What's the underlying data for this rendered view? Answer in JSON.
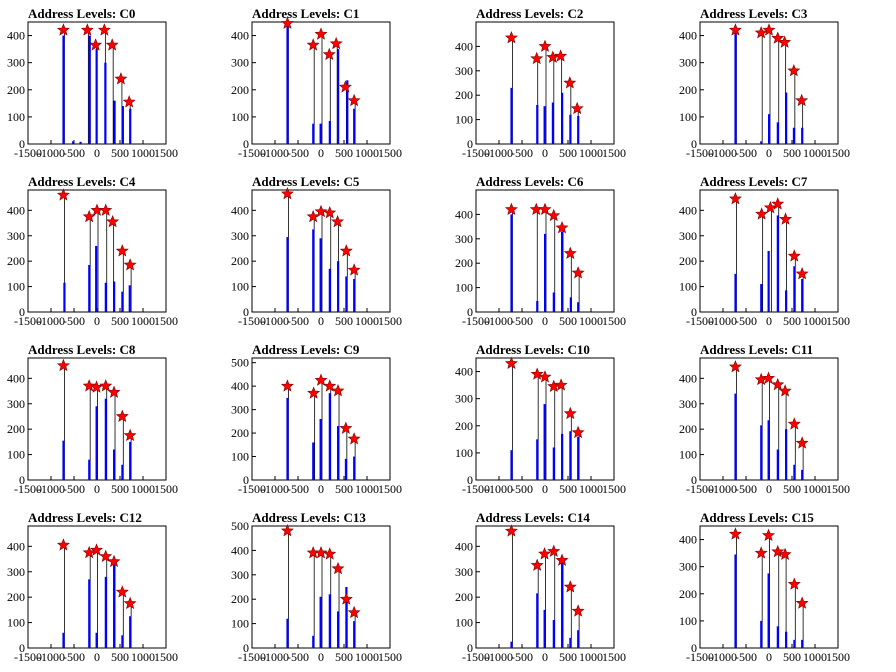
{
  "layout": {
    "rows": 4,
    "cols": 4
  },
  "x_ticks": [
    -1500,
    -1000,
    -500,
    0,
    500,
    1000,
    1500
  ],
  "x_tick_labels": [
    "-1500",
    "-1000",
    "-500",
    "0",
    "500",
    "1000",
    "1500"
  ],
  "xlim": [
    -1500,
    1500
  ],
  "colors": {
    "bars": "#0000ff",
    "markers": "#ff0000",
    "marker_edge": "#800000",
    "peak_lines": "#000000"
  },
  "chart_data": [
    {
      "type": "bar",
      "title": "Address Levels: C0",
      "xlim": [
        -1500,
        1500
      ],
      "ylim": [
        0,
        450
      ],
      "y_ticks": [
        0,
        100,
        200,
        300,
        400
      ],
      "bars": {
        "x": [
          -730,
          -520,
          -360,
          -160,
          -10,
          180,
          380,
          560,
          720
        ],
        "values": [
          400,
          10,
          8,
          400,
          350,
          300,
          160,
          140,
          130
        ]
      },
      "peak_markers": {
        "x": [
          -730,
          -210,
          -30,
          160,
          330,
          520,
          700
        ],
        "values": [
          420,
          420,
          365,
          420,
          365,
          240,
          155
        ]
      }
    },
    {
      "type": "bar",
      "title": "Address Levels: C1",
      "xlim": [
        -1500,
        1500
      ],
      "ylim": [
        0,
        450
      ],
      "y_ticks": [
        0,
        100,
        200,
        300,
        400
      ],
      "bars": {
        "x": [
          -730,
          -170,
          -10,
          190,
          370,
          570,
          720
        ],
        "values": [
          440,
          75,
          75,
          85,
          350,
          235,
          130
        ]
      },
      "peak_markers": {
        "x": [
          -730,
          -170,
          0,
          180,
          330,
          530,
          720
        ],
        "values": [
          445,
          365,
          405,
          330,
          370,
          210,
          160
        ]
      }
    },
    {
      "type": "bar",
      "title": "Address Levels: C2",
      "xlim": [
        -1500,
        1500
      ],
      "ylim": [
        0,
        500
      ],
      "y_ticks": [
        0,
        100,
        200,
        300,
        400
      ],
      "bars": {
        "x": [
          -730,
          -170,
          -10,
          170,
          370,
          550,
          720
        ],
        "values": [
          230,
          160,
          155,
          170,
          210,
          120,
          115
        ]
      },
      "peak_markers": {
        "x": [
          -730,
          -180,
          0,
          170,
          340,
          540,
          700
        ],
        "values": [
          435,
          350,
          400,
          355,
          360,
          250,
          145
        ]
      }
    },
    {
      "type": "bar",
      "title": "Address Levels: C3",
      "xlim": [
        -1500,
        1500
      ],
      "ylim": [
        0,
        450
      ],
      "y_ticks": [
        0,
        100,
        200,
        300,
        400
      ],
      "bars": {
        "x": [
          -730,
          -170,
          0,
          190,
          370,
          540,
          720
        ],
        "values": [
          420,
          10,
          110,
          80,
          190,
          60,
          60
        ]
      },
      "peak_markers": {
        "x": [
          -730,
          -170,
          0,
          190,
          340,
          540,
          710
        ],
        "values": [
          420,
          410,
          420,
          390,
          375,
          270,
          160
        ]
      }
    },
    {
      "type": "bar",
      "title": "Address Levels: C4",
      "xlim": [
        -1500,
        1500
      ],
      "ylim": [
        0,
        480
      ],
      "y_ticks": [
        0,
        100,
        200,
        300,
        400
      ],
      "bars": {
        "x": [
          -710,
          -170,
          -20,
          190,
          370,
          550,
          710
        ],
        "values": [
          115,
          185,
          260,
          115,
          120,
          80,
          105
        ]
      },
      "peak_markers": {
        "x": [
          -730,
          -170,
          0,
          190,
          340,
          550,
          720
        ],
        "values": [
          460,
          375,
          400,
          400,
          355,
          240,
          185
        ]
      }
    },
    {
      "type": "bar",
      "title": "Address Levels: C5",
      "xlim": [
        -1500,
        1500
      ],
      "ylim": [
        0,
        480
      ],
      "y_ticks": [
        0,
        100,
        200,
        300,
        400
      ],
      "bars": {
        "x": [
          -730,
          -170,
          -10,
          190,
          370,
          550,
          720
        ],
        "values": [
          295,
          325,
          290,
          170,
          200,
          140,
          130
        ]
      },
      "peak_markers": {
        "x": [
          -730,
          -170,
          0,
          190,
          360,
          550,
          720
        ],
        "values": [
          465,
          375,
          395,
          390,
          355,
          240,
          165
        ]
      }
    },
    {
      "type": "bar",
      "title": "Address Levels: C6",
      "xlim": [
        -1500,
        1500
      ],
      "ylim": [
        0,
        500
      ],
      "y_ticks": [
        0,
        100,
        200,
        300,
        400
      ],
      "bars": {
        "x": [
          -730,
          -170,
          0,
          190,
          370,
          560,
          720
        ],
        "values": [
          400,
          45,
          320,
          80,
          330,
          60,
          40
        ]
      },
      "peak_markers": {
        "x": [
          -730,
          -190,
          0,
          190,
          370,
          550,
          720
        ],
        "values": [
          420,
          420,
          420,
          395,
          345,
          240,
          160
        ]
      }
    },
    {
      "type": "bar",
      "title": "Address Levels: C7",
      "xlim": [
        -1500,
        1500
      ],
      "ylim": [
        0,
        480
      ],
      "y_ticks": [
        0,
        100,
        200,
        300,
        400
      ],
      "bars": {
        "x": [
          -730,
          -170,
          -10,
          190,
          370,
          550,
          720
        ],
        "values": [
          150,
          110,
          240,
          380,
          85,
          180,
          130
        ]
      },
      "peak_markers": {
        "x": [
          -730,
          -160,
          30,
          190,
          360,
          550,
          720
        ],
        "values": [
          445,
          385,
          410,
          425,
          365,
          220,
          150
        ]
      }
    },
    {
      "type": "bar",
      "title": "Address Levels: C8",
      "xlim": [
        -1500,
        1500
      ],
      "ylim": [
        0,
        480
      ],
      "y_ticks": [
        0,
        100,
        200,
        300,
        400
      ],
      "bars": {
        "x": [
          -730,
          -170,
          -10,
          190,
          370,
          550,
          720
        ],
        "values": [
          155,
          80,
          290,
          320,
          120,
          60,
          150
        ]
      },
      "peak_markers": {
        "x": [
          -730,
          -170,
          -10,
          190,
          370,
          550,
          720
        ],
        "values": [
          450,
          370,
          365,
          370,
          345,
          250,
          175
        ]
      }
    },
    {
      "type": "bar",
      "title": "Address Levels: C9",
      "xlim": [
        -1500,
        1500
      ],
      "ylim": [
        0,
        520
      ],
      "y_ticks": [
        0,
        100,
        200,
        300,
        400,
        500
      ],
      "bars": {
        "x": [
          -730,
          -170,
          -10,
          190,
          370,
          540,
          720
        ],
        "values": [
          350,
          160,
          260,
          370,
          230,
          90,
          100
        ]
      },
      "peak_markers": {
        "x": [
          -730,
          -160,
          0,
          190,
          370,
          540,
          720
        ],
        "values": [
          400,
          370,
          425,
          400,
          380,
          220,
          175
        ]
      }
    },
    {
      "type": "bar",
      "title": "Address Levels: C10",
      "xlim": [
        -1500,
        1500
      ],
      "ylim": [
        0,
        450
      ],
      "y_ticks": [
        0,
        100,
        200,
        300,
        400
      ],
      "bars": {
        "x": [
          -730,
          -170,
          -10,
          190,
          370,
          550,
          720
        ],
        "values": [
          110,
          150,
          280,
          120,
          170,
          180,
          160
        ]
      },
      "peak_markers": {
        "x": [
          -730,
          -170,
          0,
          190,
          350,
          550,
          720
        ],
        "values": [
          430,
          390,
          380,
          345,
          350,
          245,
          175
        ]
      }
    },
    {
      "type": "bar",
      "title": "Address Levels: C11",
      "xlim": [
        -1500,
        1500
      ],
      "ylim": [
        0,
        480
      ],
      "y_ticks": [
        0,
        100,
        200,
        300,
        400
      ],
      "bars": {
        "x": [
          -730,
          -170,
          -10,
          190,
          370,
          550,
          720
        ],
        "values": [
          340,
          215,
          235,
          120,
          200,
          60,
          40
        ]
      },
      "peak_markers": {
        "x": [
          -730,
          -170,
          -10,
          190,
          350,
          550,
          720
        ],
        "values": [
          445,
          395,
          400,
          375,
          350,
          220,
          145
        ]
      }
    },
    {
      "type": "bar",
      "title": "Address Levels: C12",
      "xlim": [
        -1500,
        1500
      ],
      "ylim": [
        0,
        480
      ],
      "y_ticks": [
        0,
        100,
        200,
        300,
        400
      ],
      "bars": {
        "x": [
          -730,
          -170,
          -10,
          190,
          370,
          550,
          720
        ],
        "values": [
          60,
          270,
          60,
          280,
          350,
          50,
          125
        ]
      },
      "peak_markers": {
        "x": [
          -730,
          -170,
          -10,
          190,
          370,
          550,
          720
        ],
        "values": [
          405,
          375,
          385,
          360,
          340,
          220,
          175
        ]
      }
    },
    {
      "type": "bar",
      "title": "Address Levels: C13",
      "xlim": [
        -1500,
        1500
      ],
      "ylim": [
        0,
        500
      ],
      "y_ticks": [
        0,
        100,
        200,
        300,
        400,
        500
      ],
      "bars": {
        "x": [
          -730,
          -170,
          -10,
          190,
          370,
          550,
          720
        ],
        "values": [
          120,
          50,
          210,
          220,
          150,
          250,
          110
        ]
      },
      "peak_markers": {
        "x": [
          -730,
          -170,
          0,
          190,
          370,
          550,
          720
        ],
        "values": [
          480,
          390,
          390,
          385,
          325,
          200,
          145
        ]
      }
    },
    {
      "type": "bar",
      "title": "Address Levels: C14",
      "xlim": [
        -1500,
        1500
      ],
      "ylim": [
        0,
        480
      ],
      "y_ticks": [
        0,
        100,
        200,
        300,
        400
      ],
      "bars": {
        "x": [
          -730,
          -170,
          -10,
          190,
          370,
          550,
          720
        ],
        "values": [
          25,
          215,
          150,
          110,
          340,
          40,
          70
        ]
      },
      "peak_markers": {
        "x": [
          -730,
          -170,
          -10,
          190,
          370,
          550,
          720
        ],
        "values": [
          460,
          325,
          370,
          380,
          345,
          240,
          145
        ]
      }
    },
    {
      "type": "bar",
      "title": "Address Levels: C15",
      "xlim": [
        -1500,
        1500
      ],
      "ylim": [
        0,
        450
      ],
      "y_ticks": [
        0,
        100,
        200,
        300,
        400
      ],
      "bars": {
        "x": [
          -730,
          -170,
          -10,
          190,
          370,
          550,
          720
        ],
        "values": [
          345,
          100,
          275,
          80,
          60,
          30,
          30
        ]
      },
      "peak_markers": {
        "x": [
          -730,
          -170,
          -10,
          190,
          350,
          550,
          720
        ],
        "values": [
          420,
          350,
          415,
          355,
          345,
          235,
          165
        ]
      }
    }
  ]
}
